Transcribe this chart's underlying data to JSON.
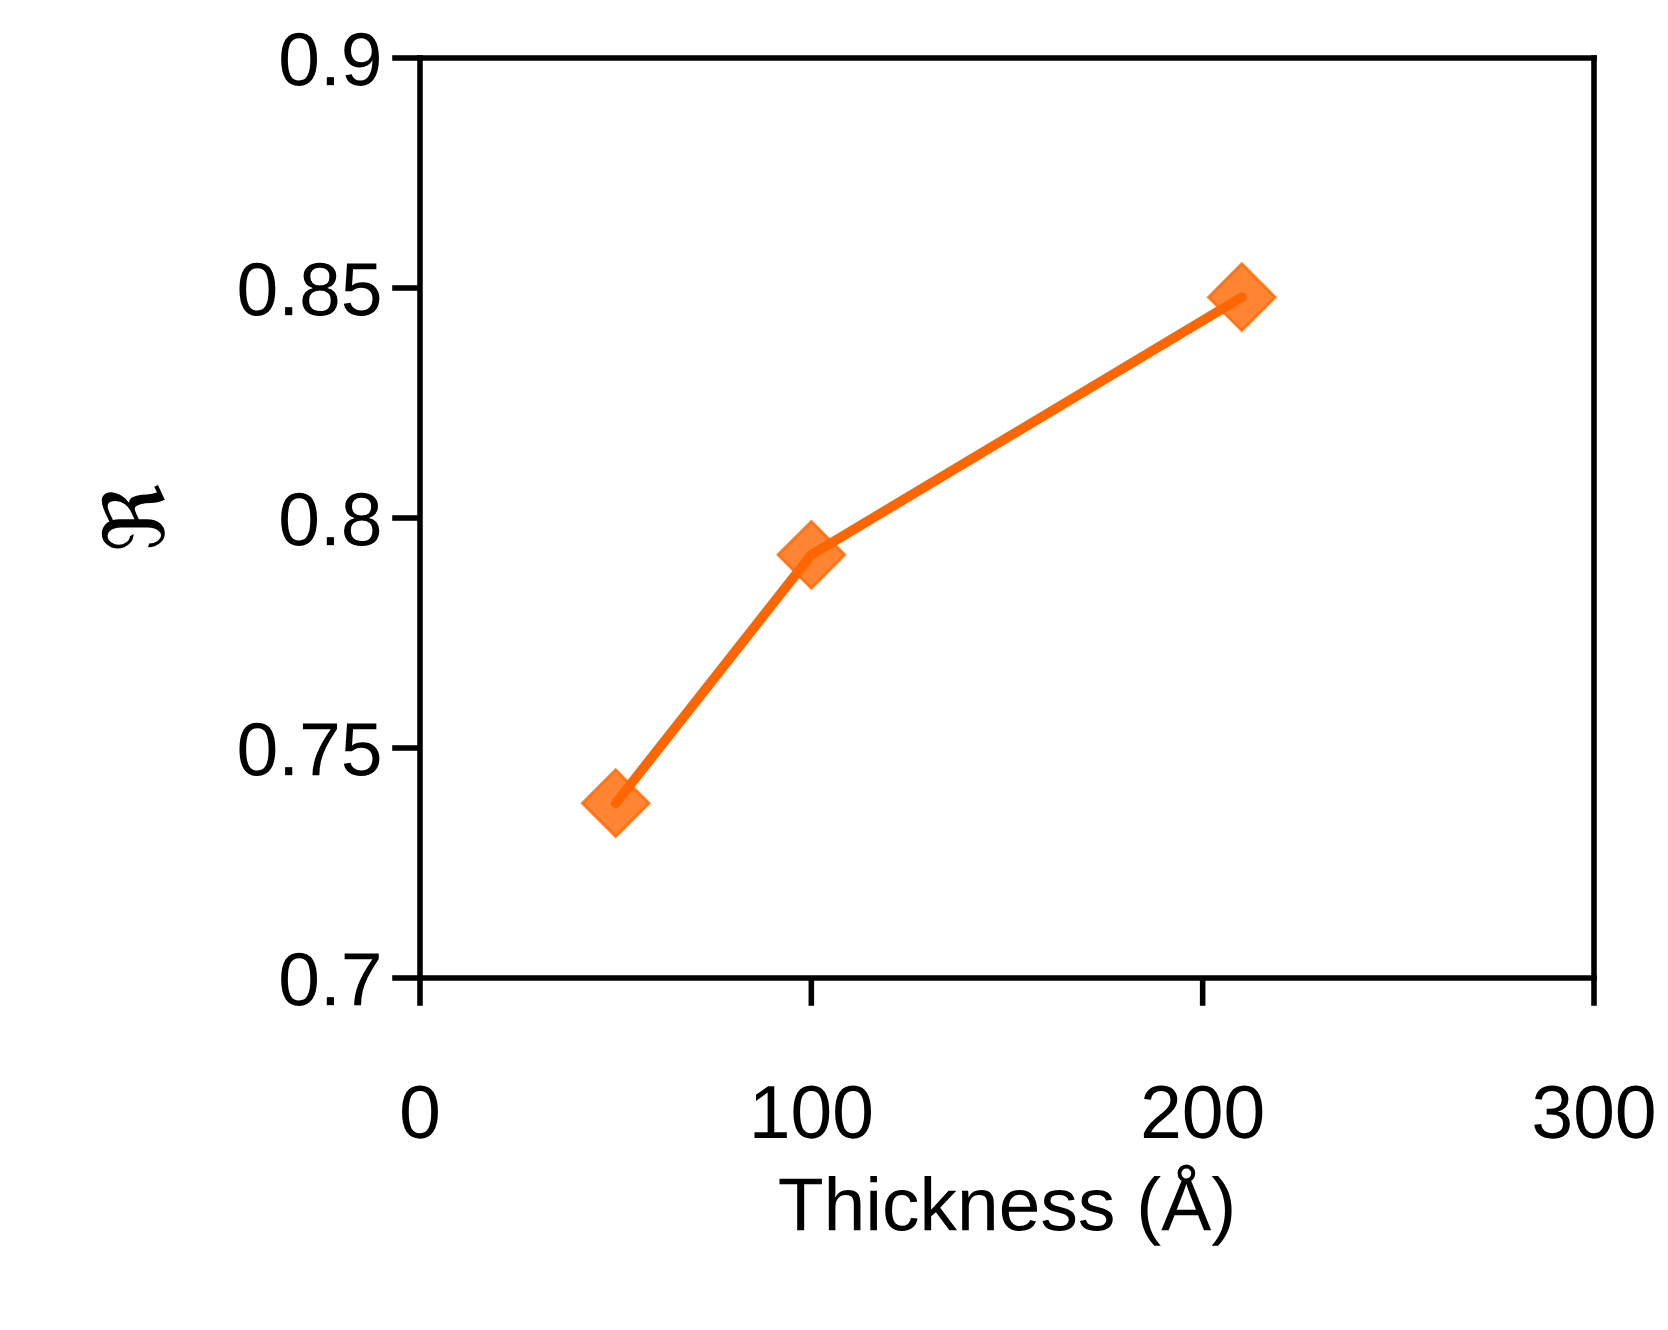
{
  "chart_data": {
    "type": "line",
    "xlabel": "Thickness (Å)",
    "ylabel": "ℜ",
    "x": [
      50,
      100,
      210
    ],
    "series": [
      {
        "color": "#ff6600",
        "values": [
          0.738,
          0.792,
          0.848
        ]
      }
    ],
    "xlim": [
      0,
      300
    ],
    "xticks": [
      0,
      100,
      200,
      300
    ],
    "ylim": [
      0.7,
      0.9
    ],
    "yticks": [
      0.7,
      0.75,
      0.8,
      0.85,
      0.9
    ],
    "grid": false,
    "marker": "diamond",
    "line_style": "solid"
  }
}
